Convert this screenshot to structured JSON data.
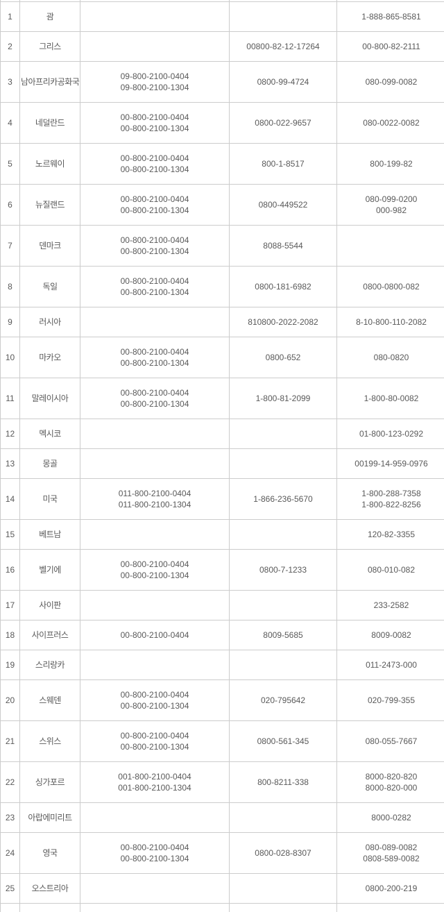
{
  "colors": {
    "text": "#595959",
    "border": "#cccccc",
    "background": "#ffffff"
  },
  "table": {
    "description_rows_visible": 25,
    "rows": [
      {
        "no": "1",
        "country": "괌",
        "col3": [],
        "col4": [],
        "col5": [
          "1-888-865-8581"
        ]
      },
      {
        "no": "2",
        "country": "그리스",
        "col3": [],
        "col4": [
          "00800-82-12-17264"
        ],
        "col5": [
          "00-800-82-2111"
        ]
      },
      {
        "no": "3",
        "country": "남아프리카공화국",
        "col3": [
          "09-800-2100-0404",
          "09-800-2100-1304"
        ],
        "col4": [
          "0800-99-4724"
        ],
        "col5": [
          "080-099-0082"
        ]
      },
      {
        "no": "4",
        "country": "네덜란드",
        "col3": [
          "00-800-2100-0404",
          "00-800-2100-1304"
        ],
        "col4": [
          "0800-022-9657"
        ],
        "col5": [
          "080-0022-0082"
        ]
      },
      {
        "no": "5",
        "country": "노르웨이",
        "col3": [
          "00-800-2100-0404",
          "00-800-2100-1304"
        ],
        "col4": [
          "800-1-8517"
        ],
        "col5": [
          "800-199-82"
        ]
      },
      {
        "no": "6",
        "country": "뉴질랜드",
        "col3": [
          "00-800-2100-0404",
          "00-800-2100-1304"
        ],
        "col4": [
          "0800-449522"
        ],
        "col5": [
          "080-099-0200",
          "000-982"
        ]
      },
      {
        "no": "7",
        "country": "덴마크",
        "col3": [
          "00-800-2100-0404",
          "00-800-2100-1304"
        ],
        "col4": [
          "8088-5544"
        ],
        "col5": []
      },
      {
        "no": "8",
        "country": "독일",
        "col3": [
          "00-800-2100-0404",
          "00-800-2100-1304"
        ],
        "col4": [
          "0800-181-6982"
        ],
        "col5": [
          "0800-0800-082"
        ]
      },
      {
        "no": "9",
        "country": "러시아",
        "col3": [],
        "col4": [
          "810800-2022-2082"
        ],
        "col5": [
          "8-10-800-110-2082"
        ]
      },
      {
        "no": "10",
        "country": "마카오",
        "col3": [
          "00-800-2100-0404",
          "00-800-2100-1304"
        ],
        "col4": [
          "0800-652"
        ],
        "col5": [
          "080-0820"
        ]
      },
      {
        "no": "11",
        "country": "말레이시아",
        "col3": [
          "00-800-2100-0404",
          "00-800-2100-1304"
        ],
        "col4": [
          "1-800-81-2099"
        ],
        "col5": [
          "1-800-80-0082"
        ]
      },
      {
        "no": "12",
        "country": "멕시코",
        "col3": [],
        "col4": [],
        "col5": [
          "01-800-123-0292"
        ]
      },
      {
        "no": "13",
        "country": "몽골",
        "col3": [],
        "col4": [],
        "col5": [
          "00199-14-959-0976"
        ]
      },
      {
        "no": "14",
        "country": "미국",
        "col3": [
          "011-800-2100-0404",
          "011-800-2100-1304"
        ],
        "col4": [
          "1-866-236-5670"
        ],
        "col5": [
          "1-800-288-7358",
          "1-800-822-8256"
        ]
      },
      {
        "no": "15",
        "country": "베트남",
        "col3": [],
        "col4": [],
        "col5": [
          "120-82-3355"
        ]
      },
      {
        "no": "16",
        "country": "벨기에",
        "col3": [
          "00-800-2100-0404",
          "00-800-2100-1304"
        ],
        "col4": [
          "0800-7-1233"
        ],
        "col5": [
          "080-010-082"
        ]
      },
      {
        "no": "17",
        "country": "사이판",
        "col3": [],
        "col4": [],
        "col5": [
          "233-2582"
        ]
      },
      {
        "no": "18",
        "country": "사이프러스",
        "col3": [
          "00-800-2100-0404"
        ],
        "col4": [
          "8009-5685"
        ],
        "col5": [
          "8009-0082"
        ]
      },
      {
        "no": "19",
        "country": "스리랑카",
        "col3": [],
        "col4": [],
        "col5": [
          "011-2473-000"
        ]
      },
      {
        "no": "20",
        "country": "스웨덴",
        "col3": [
          "00-800-2100-0404",
          "00-800-2100-1304"
        ],
        "col4": [
          "020-795642"
        ],
        "col5": [
          "020-799-355"
        ]
      },
      {
        "no": "21",
        "country": "스위스",
        "col3": [
          "00-800-2100-0404",
          "00-800-2100-1304"
        ],
        "col4": [
          "0800-561-345"
        ],
        "col5": [
          "080-055-7667"
        ]
      },
      {
        "no": "22",
        "country": "싱가포르",
        "col3": [
          "001-800-2100-0404",
          "001-800-2100-1304"
        ],
        "col4": [
          "800-8211-338"
        ],
        "col5": [
          "8000-820-820",
          "8000-820-000"
        ]
      },
      {
        "no": "23",
        "country": "아랍에미리트",
        "col3": [],
        "col4": [],
        "col5": [
          "8000-0282"
        ]
      },
      {
        "no": "24",
        "country": "영국",
        "col3": [
          "00-800-2100-0404",
          "00-800-2100-1304"
        ],
        "col4": [
          "0800-028-8307"
        ],
        "col5": [
          "080-089-0082",
          "0808-589-0082"
        ]
      },
      {
        "no": "25",
        "country": "오스트리아",
        "col3": [],
        "col4": [],
        "col5": [
          "0800-200-219"
        ]
      }
    ]
  }
}
